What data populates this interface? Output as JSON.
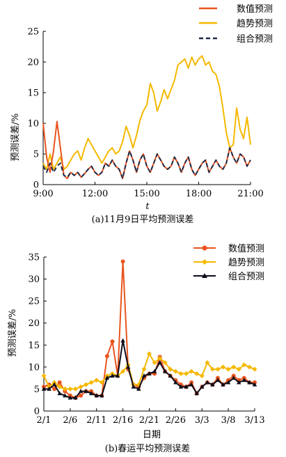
{
  "chart_data": [
    {
      "type": "line",
      "xlabel": "t",
      "ylabel": "预测误差/%",
      "caption": "(a)11月9日平均预测误差",
      "xticks": [
        "9:00",
        "12:00",
        "15:00",
        "18:00",
        "21:00"
      ],
      "xlim_hours": [
        9,
        21
      ],
      "ylim": [
        0,
        25
      ],
      "yticks": [
        0,
        5,
        10,
        15,
        20,
        25
      ],
      "legend_position": "top-right",
      "series": [
        {
          "name": "数值预测",
          "color": "#e8541e",
          "style": "solid",
          "x": [
            9.0,
            9.2,
            9.4,
            9.6,
            9.8,
            10.0,
            10.2,
            10.4,
            10.6,
            10.8,
            11.0,
            11.2,
            11.4,
            11.6,
            11.8,
            12.0,
            12.2,
            12.4,
            12.6,
            12.8,
            13.0,
            13.2,
            13.4,
            13.6,
            13.8,
            14.0,
            14.2,
            14.4,
            14.6,
            14.8,
            15.0,
            15.2,
            15.4,
            15.6,
            15.8,
            16.0,
            16.2,
            16.4,
            16.6,
            16.8,
            17.0,
            17.2,
            17.4,
            17.6,
            17.8,
            18.0,
            18.2,
            18.4,
            18.6,
            18.8,
            19.0,
            19.2,
            19.4,
            19.6,
            19.8,
            20.0,
            20.2,
            20.4,
            20.6,
            20.8,
            21.0
          ],
          "values": [
            10.0,
            4.5,
            2.0,
            5.5,
            10.3,
            6.0,
            1.5,
            1.0,
            2.0,
            1.5,
            2.0,
            1.2,
            1.8,
            2.5,
            3.0,
            2.0,
            1.5,
            2.0,
            3.5,
            3.0,
            4.0,
            3.0,
            2.5,
            1.0,
            3.5,
            5.5,
            4.0,
            2.0,
            4.0,
            5.0,
            3.0,
            2.0,
            3.5,
            5.0,
            4.0,
            3.0,
            2.5,
            3.0,
            4.5,
            3.5,
            2.0,
            3.5,
            4.5,
            2.5,
            1.5,
            2.5,
            3.5,
            4.0,
            2.0,
            3.0,
            4.0,
            3.0,
            2.5,
            3.5,
            6.0,
            4.5,
            3.5,
            5.0,
            4.5,
            3.0,
            4.0
          ]
        },
        {
          "name": "趋势预测",
          "color": "#f5b800",
          "style": "solid",
          "x": [
            9.0,
            9.2,
            9.4,
            9.6,
            9.8,
            10.0,
            10.2,
            10.4,
            10.6,
            10.8,
            11.0,
            11.2,
            11.4,
            11.6,
            11.8,
            12.0,
            12.2,
            12.4,
            12.6,
            12.8,
            13.0,
            13.2,
            13.4,
            13.6,
            13.8,
            14.0,
            14.2,
            14.4,
            14.6,
            14.8,
            15.0,
            15.2,
            15.4,
            15.6,
            15.8,
            16.0,
            16.2,
            16.4,
            16.6,
            16.8,
            17.0,
            17.2,
            17.4,
            17.6,
            17.8,
            18.0,
            18.2,
            18.4,
            18.6,
            18.8,
            19.0,
            19.2,
            19.4,
            19.6,
            19.8,
            20.0,
            20.2,
            20.4,
            20.6,
            20.8,
            21.0
          ],
          "values": [
            3.5,
            2.5,
            5.0,
            2.5,
            3.5,
            4.5,
            2.5,
            3.0,
            4.0,
            5.0,
            5.5,
            4.0,
            6.0,
            7.5,
            6.5,
            5.5,
            4.5,
            3.5,
            4.5,
            5.5,
            6.0,
            5.0,
            5.5,
            7.0,
            9.5,
            8.0,
            6.0,
            8.0,
            10.5,
            12.0,
            13.0,
            16.5,
            15.0,
            12.0,
            13.5,
            15.5,
            14.0,
            15.5,
            17.0,
            19.5,
            20.0,
            20.5,
            19.0,
            20.8,
            19.5,
            20.5,
            21.0,
            19.5,
            20.0,
            18.5,
            18.0,
            16.0,
            12.5,
            8.5,
            6.0,
            6.5,
            12.5,
            9.0,
            7.5,
            11.0,
            6.5
          ]
        },
        {
          "name": "组合预测",
          "color": "#1c2a4a",
          "style": "dashed",
          "x": [
            9.0,
            9.2,
            9.4,
            9.6,
            9.8,
            10.0,
            10.2,
            10.4,
            10.6,
            10.8,
            11.0,
            11.2,
            11.4,
            11.6,
            11.8,
            12.0,
            12.2,
            12.4,
            12.6,
            12.8,
            13.0,
            13.2,
            13.4,
            13.6,
            13.8,
            14.0,
            14.2,
            14.4,
            14.6,
            14.8,
            15.0,
            15.2,
            15.4,
            15.6,
            15.8,
            16.0,
            16.2,
            16.4,
            16.6,
            16.8,
            17.0,
            17.2,
            17.4,
            17.6,
            17.8,
            18.0,
            18.2,
            18.4,
            18.6,
            18.8,
            19.0,
            19.2,
            19.4,
            19.6,
            19.8,
            20.0,
            20.2,
            20.4,
            20.6,
            20.8,
            21.0
          ],
          "values": [
            3.0,
            2.0,
            3.5,
            2.0,
            3.0,
            3.5,
            1.5,
            1.2,
            2.0,
            1.5,
            2.0,
            1.2,
            1.8,
            2.5,
            3.0,
            2.0,
            1.5,
            2.0,
            3.5,
            3.0,
            4.0,
            3.0,
            2.5,
            1.0,
            3.5,
            5.5,
            4.0,
            2.0,
            4.0,
            5.0,
            3.0,
            2.0,
            3.5,
            5.0,
            4.0,
            3.0,
            2.5,
            3.0,
            4.5,
            3.5,
            2.0,
            3.5,
            4.5,
            2.5,
            1.5,
            2.5,
            3.5,
            4.0,
            2.0,
            3.0,
            4.0,
            3.0,
            2.5,
            3.5,
            6.0,
            4.5,
            3.5,
            5.0,
            4.5,
            3.0,
            4.0
          ]
        }
      ]
    },
    {
      "type": "line",
      "xlabel": "日期",
      "ylabel": "预测误差/%",
      "caption": "(b)春运平均预测误差",
      "xticks": [
        "2/1",
        "2/6",
        "2/11",
        "2/16",
        "2/21",
        "2/26",
        "3/3",
        "3/8",
        "3/13"
      ],
      "x_day_index_range": [
        0,
        40
      ],
      "ylim": [
        0,
        35
      ],
      "yticks": [
        0,
        5,
        10,
        15,
        20,
        25,
        30,
        35
      ],
      "legend_position": "top-right",
      "series": [
        {
          "name": "数值预测",
          "color": "#e8541e",
          "marker": "circle",
          "values": [
            5.5,
            6.0,
            5.0,
            6.5,
            4.5,
            3.5,
            3.0,
            3.5,
            4.5,
            4.5,
            3.5,
            3.5,
            12.5,
            15.8,
            8.0,
            34.0,
            9.5,
            6.0,
            5.5,
            7.5,
            8.5,
            8.5,
            12.3,
            9.0,
            8.0,
            7.0,
            6.0,
            5.5,
            6.5,
            4.0,
            5.5,
            6.5,
            6.0,
            7.5,
            6.0,
            7.0,
            8.0,
            7.0,
            7.5,
            6.5,
            6.5
          ]
        },
        {
          "name": "趋势预测",
          "color": "#f5b800",
          "marker": "diamond",
          "values": [
            8.0,
            5.5,
            6.5,
            5.5,
            5.0,
            5.0,
            5.0,
            5.5,
            6.0,
            6.5,
            7.0,
            6.5,
            8.0,
            8.5,
            8.0,
            9.0,
            10.5,
            6.0,
            6.0,
            9.5,
            13.0,
            11.0,
            12.0,
            11.0,
            9.5,
            9.0,
            8.5,
            8.5,
            9.0,
            8.5,
            8.0,
            11.0,
            9.5,
            9.5,
            10.0,
            9.5,
            10.0,
            9.5,
            10.5,
            10.0,
            9.5
          ]
        },
        {
          "name": "组合预测",
          "color": "#0d0d1a",
          "marker": "triangle",
          "values": [
            5.0,
            5.0,
            6.0,
            4.0,
            3.5,
            3.0,
            3.0,
            4.5,
            4.5,
            4.0,
            3.5,
            3.5,
            7.5,
            8.0,
            8.0,
            16.0,
            10.0,
            5.5,
            5.0,
            8.0,
            8.5,
            9.0,
            11.0,
            9.0,
            8.0,
            6.5,
            5.5,
            5.5,
            6.0,
            4.0,
            5.5,
            6.5,
            6.0,
            7.0,
            6.0,
            6.5,
            7.5,
            6.5,
            7.0,
            6.5,
            6.0
          ]
        }
      ]
    }
  ]
}
